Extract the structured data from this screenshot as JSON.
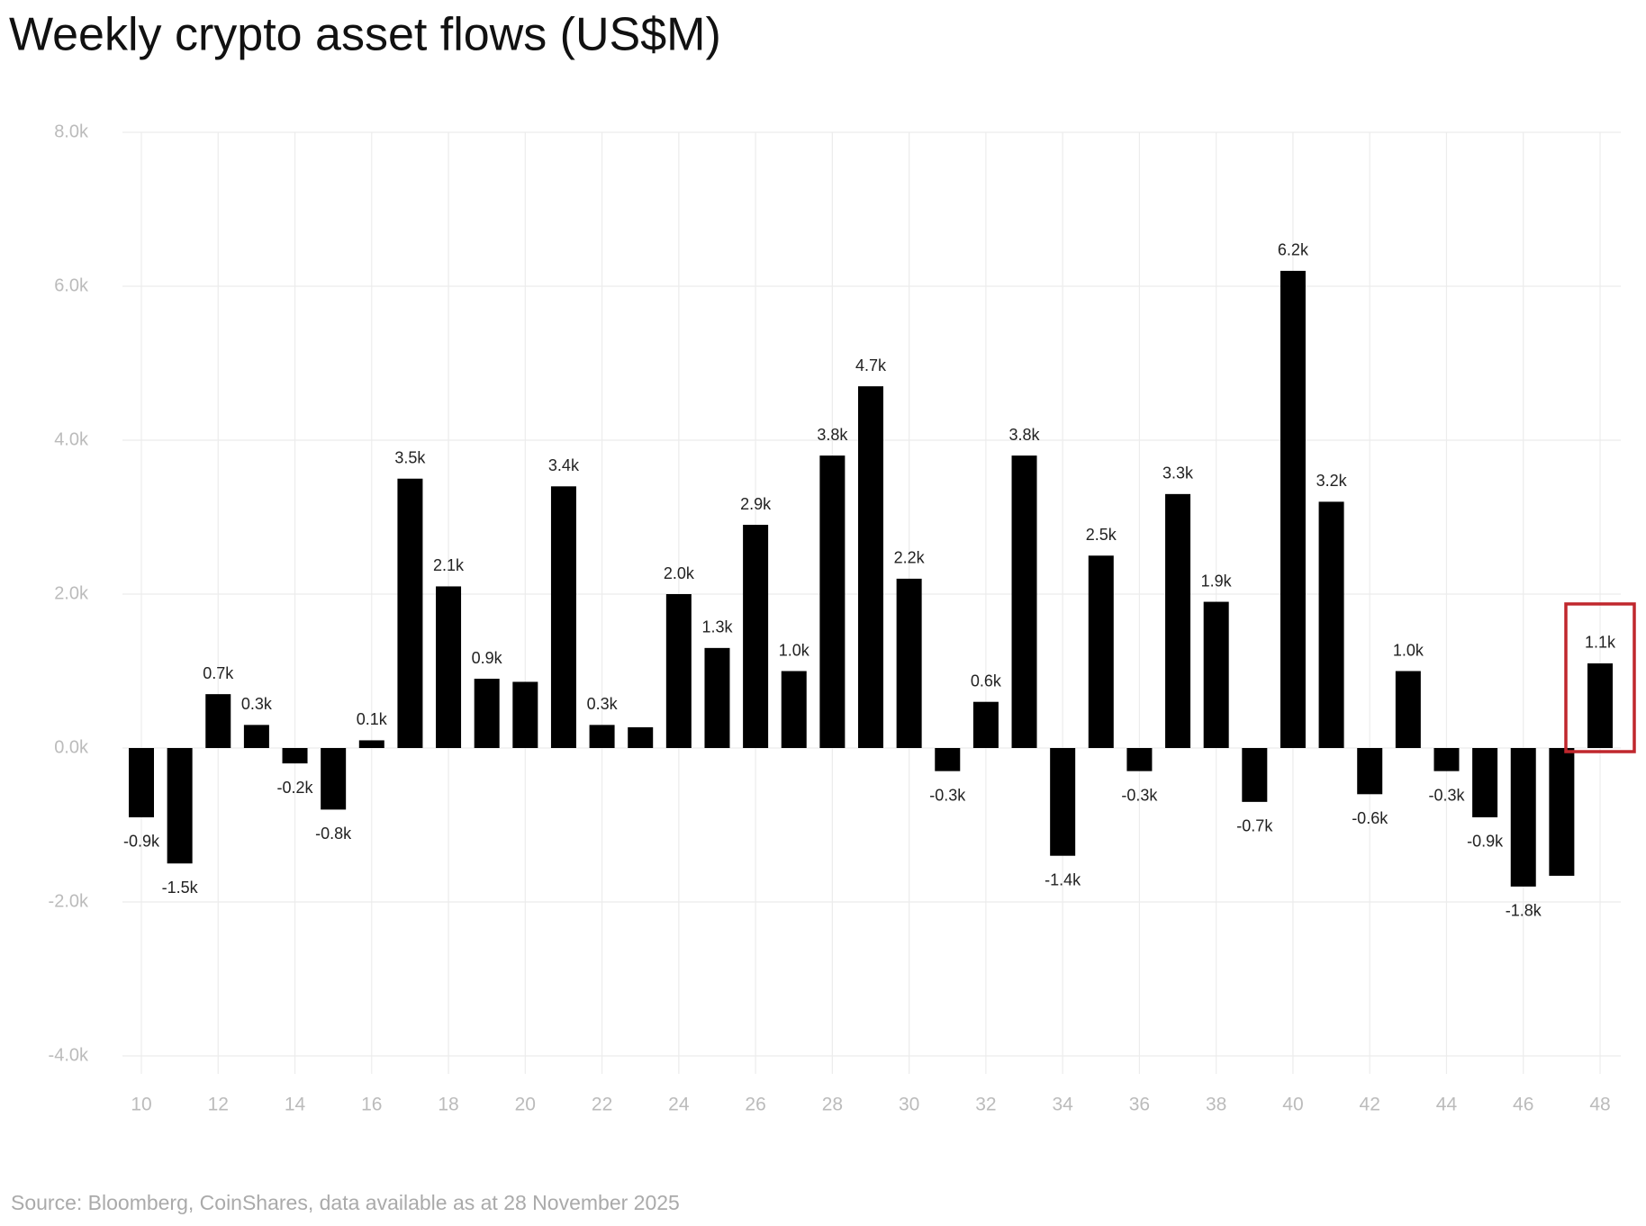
{
  "chart_data": {
    "type": "bar",
    "title": "Weekly crypto asset flows (US$M)",
    "source": "Source: Bloomberg, CoinShares, data available as at 28 November 2025",
    "categories": [
      "10",
      null,
      "12",
      null,
      "14",
      null,
      "16",
      null,
      "18",
      null,
      "20",
      null,
      "22",
      null,
      "24",
      null,
      "26",
      null,
      "28",
      null,
      "30",
      null,
      "32",
      null,
      "34",
      null,
      "36",
      null,
      "38",
      null,
      "40",
      null,
      "42",
      null,
      "44",
      null,
      "46",
      null,
      "48"
    ],
    "values": [
      -900,
      -1500,
      700,
      300,
      -200,
      -800,
      100,
      3500,
      2100,
      900,
      860,
      3400,
      300,
      270,
      2000,
      1300,
      2900,
      1000,
      3800,
      4700,
      2200,
      -300,
      600,
      3800,
      -1400,
      2500,
      -300,
      3300,
      1900,
      -700,
      6200,
      3200,
      -600,
      1000,
      -300,
      -900,
      -1800,
      -1660,
      1100
    ],
    "value_labels": [
      "-0.9k",
      "-1.5k",
      "0.7k",
      "0.3k",
      "-0.2k",
      "-0.8k",
      "0.1k",
      "3.5k",
      "2.1k",
      "0.9k",
      null,
      "3.4k",
      "0.3k",
      null,
      "2.0k",
      "1.3k",
      "2.9k",
      "1.0k",
      "3.8k",
      "4.7k",
      "2.2k",
      "-0.3k",
      "0.6k",
      "3.8k",
      "-1.4k",
      "2.5k",
      "-0.3k",
      "3.3k",
      "1.9k",
      "-0.7k",
      "6.2k",
      "3.2k",
      "-0.6k",
      "1.0k",
      "-0.3k",
      "-0.9k",
      "-1.8k",
      null,
      "1.1k"
    ],
    "color": "#000000",
    "ylim": [
      -4000,
      8000
    ],
    "yticks": [
      {
        "value": -4000,
        "label": "-4.0k"
      },
      {
        "value": -2000,
        "label": "-2.0k"
      },
      {
        "value": 0,
        "label": "0.0k"
      },
      {
        "value": 2000,
        "label": "2.0k"
      },
      {
        "value": 4000,
        "label": "4.0k"
      },
      {
        "value": 6000,
        "label": "6.0k"
      },
      {
        "value": 8000,
        "label": "8.0k"
      }
    ],
    "grid": true
  }
}
